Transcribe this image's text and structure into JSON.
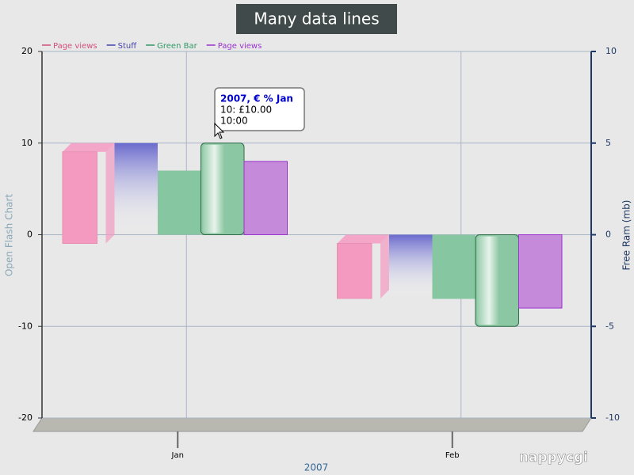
{
  "chart_data": {
    "type": "bar",
    "title": "Many data lines",
    "y_label": "Open Flash Chart",
    "y2_label": "Free Ram (mb)",
    "x_label": "2007",
    "categories": [
      "Jan",
      "Feb"
    ],
    "series": [
      {
        "name": "Page views",
        "color": "#f49ac1",
        "legend_color": "#d0507a",
        "style": "3d",
        "values": [
          10,
          -6
        ]
      },
      {
        "name": "Stuff",
        "color": "#6a6acd",
        "legend_color": "#4444aa",
        "style": "fade",
        "values": [
          10,
          -7
        ]
      },
      {
        "name": "Green Bar",
        "color": "#86c6a0",
        "legend_color": "#339966",
        "style": "plain",
        "values": [
          7,
          -7
        ]
      },
      {
        "color": "#8bc7a2",
        "style": "glass",
        "values": [
          10,
          -10
        ]
      },
      {
        "name": "Page views",
        "color": "#c58ad9",
        "legend_color": "#9933cc",
        "style": "plain",
        "values": [
          8,
          -8
        ]
      }
    ],
    "ylim": [
      -20,
      20
    ],
    "yticks": [
      -20,
      -10,
      0,
      10,
      20
    ],
    "y2lim": [
      -10,
      10
    ],
    "y2ticks": [
      -10,
      -5,
      0,
      5,
      10
    ],
    "grid": true,
    "tooltip": {
      "title": "2007, € % Jan",
      "lines": [
        "10: £10.00",
        "10:00"
      ]
    },
    "logo": "nappycgi"
  }
}
